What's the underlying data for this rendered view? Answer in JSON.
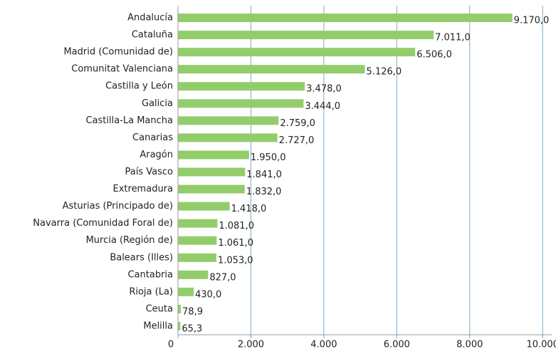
{
  "chart_data": {
    "type": "hbar",
    "categories": [
      "Andalucía",
      "Cataluña",
      "Madrid (Comunidad de)",
      "Comunitat Valenciana",
      "Castilla y León",
      "Galicia",
      "Castilla-La Mancha",
      "Canarias",
      "Aragón",
      "País Vasco",
      "Extremadura",
      "Asturias (Principado de)",
      "Navarra (Comunidad Foral de)",
      "Murcia (Región de)",
      "Balears (Illes)",
      "Cantabria",
      "Rioja (La)",
      "Ceuta",
      "Melilla"
    ],
    "values": [
      9170,
      7011,
      6506,
      5126,
      3478,
      3444,
      2759,
      2727,
      1950,
      1841,
      1832,
      1418,
      1081,
      1061,
      1053,
      827,
      430,
      78.9,
      65.3
    ],
    "value_labels": [
      "9.170,0",
      "7.011,0",
      "6.506,0",
      "5.126,0",
      "3.478,0",
      "3.444,0",
      "2.759,0",
      "2.727,0",
      "1.950,0",
      "1.841,0",
      "1.832,0",
      "1.418,0",
      "1.081,0",
      "1.061,0",
      "1.053,0",
      "827,0",
      "430,0",
      "78,9",
      "65,3"
    ],
    "color": "#93cd6b",
    "xlim": [
      0,
      10250
    ],
    "xticks": [
      0,
      {
        "value": 2000,
        "label": "2.000"
      },
      {
        "value": 4000,
        "label": "4.000"
      },
      {
        "value": 6000,
        "label": "6.000"
      },
      {
        "value": 8000,
        "label": "8.000"
      },
      {
        "value": 10000,
        "label": "10.000"
      }
    ],
    "grid": true
  }
}
